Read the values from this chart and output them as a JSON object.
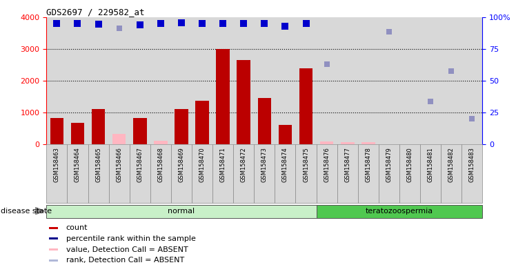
{
  "title": "GDS2697 / 229582_at",
  "samples": [
    "GSM158463",
    "GSM158464",
    "GSM158465",
    "GSM158466",
    "GSM158467",
    "GSM158468",
    "GSM158469",
    "GSM158470",
    "GSM158471",
    "GSM158472",
    "GSM158473",
    "GSM158474",
    "GSM158475",
    "GSM158476",
    "GSM158477",
    "GSM158478",
    "GSM158479",
    "GSM158480",
    "GSM158481",
    "GSM158482",
    "GSM158483"
  ],
  "count_values": [
    820,
    670,
    1120,
    null,
    840,
    null,
    1110,
    1380,
    3010,
    2650,
    1460,
    620,
    2390,
    null,
    null,
    null,
    null,
    null,
    null,
    null,
    null
  ],
  "count_absent": [
    null,
    null,
    null,
    330,
    null,
    110,
    null,
    null,
    null,
    null,
    null,
    null,
    null,
    100,
    80,
    80,
    null,
    null,
    null,
    null,
    null
  ],
  "rank_values": [
    3800,
    3800,
    3780,
    null,
    3750,
    3800,
    3820,
    3800,
    3800,
    3800,
    3800,
    3720,
    3800,
    null,
    null,
    null,
    null,
    null,
    null,
    null,
    null
  ],
  "rank_absent": [
    null,
    null,
    null,
    3650,
    null,
    null,
    null,
    null,
    null,
    null,
    null,
    null,
    null,
    2520,
    null,
    null,
    3550,
    null,
    1350,
    2300,
    800
  ],
  "ylim": [
    0,
    4000
  ],
  "groups": [
    {
      "label": "normal",
      "start": 0,
      "end": 13,
      "color": "#c8f0c8"
    },
    {
      "label": "teratozoospermia",
      "start": 13,
      "end": 21,
      "color": "#50c850"
    }
  ],
  "disease_state_label": "disease state",
  "legend_items": [
    {
      "color": "#cc0000",
      "label": "count"
    },
    {
      "color": "#00008b",
      "label": "percentile rank within the sample"
    },
    {
      "color": "#ffb6c1",
      "label": "value, Detection Call = ABSENT"
    },
    {
      "color": "#b0b8d8",
      "label": "rank, Detection Call = ABSENT"
    }
  ],
  "bar_color": "#bb0000",
  "absent_bar_color": "#ffb6c1",
  "rank_color": "#0000cc",
  "rank_absent_color": "#9090c0",
  "bg_color": "#d8d8d8",
  "dotted_grid_values": [
    1000,
    2000,
    3000
  ],
  "rank_scale": 40,
  "rank_dot_size": 55,
  "rank_absent_dot_size": 38
}
